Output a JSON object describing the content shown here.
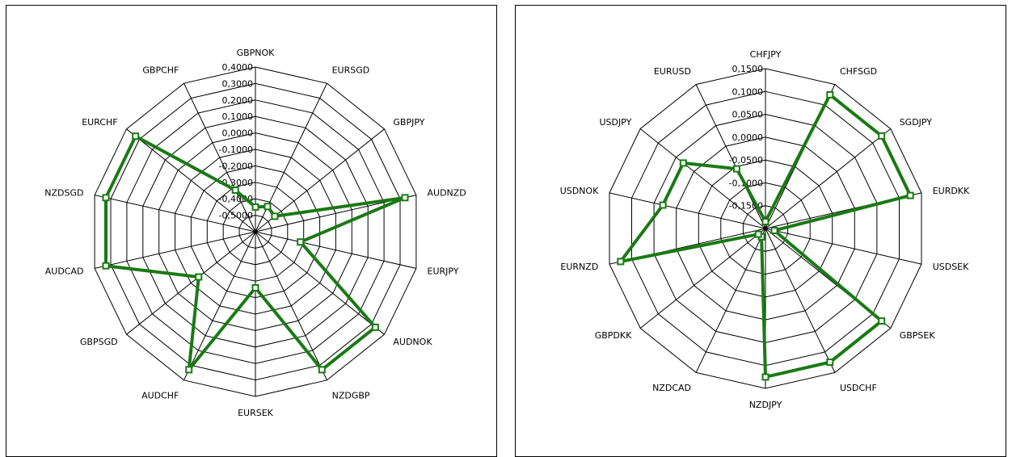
{
  "colors": {
    "series": "#1a7a14",
    "grid": "#000000",
    "background": "#ffffff"
  },
  "chart_data": [
    {
      "type": "radar",
      "title": "",
      "categories": [
        "GBPNOK",
        "EURSGD",
        "GBPJPY",
        "AUDNZD",
        "EURJPY",
        "AUDNOK",
        "NZDGBP",
        "EURSEK",
        "AUDCHF",
        "GBPSGD",
        "AUDCAD",
        "NZDSGD",
        "EURCHF",
        "GBPCHF"
      ],
      "ticks": [
        "0,4000",
        "0,3000",
        "0,2000",
        "0,1000",
        "0,0000",
        "-0,1000",
        "-0,2000",
        "-0,3000",
        "-0,4000",
        "-0,5000"
      ],
      "rmin": -0.6,
      "rmax": 0.4,
      "grid": true,
      "series": [
        {
          "values": [
            -0.45,
            -0.43,
            -0.45,
            0.33,
            -0.32,
            0.33,
            0.33,
            -0.26,
            0.33,
            -0.16,
            0.33,
            0.33,
            0.33,
            -0.32
          ]
        }
      ]
    },
    {
      "type": "radar",
      "title": "",
      "categories": [
        "CHFJPY",
        "CHFSGD",
        "SGDJPY",
        "EURDKK",
        "USDSEK",
        "GBPSEK",
        "USDCHF",
        "NZDJPY",
        "NZDCAD",
        "GBPDKK",
        "EURNZD",
        "USDNOK",
        "USDJPY",
        "EURUSD"
      ],
      "ticks": [
        "0,1500",
        "0,1000",
        "0,0500",
        "0,0000",
        "-0,0500",
        "-0,1000",
        "-0,1500"
      ],
      "rmin": -0.2,
      "rmax": 0.15,
      "grid": true,
      "series": [
        {
          "values": [
            -0.185,
            0.125,
            0.125,
            0.125,
            -0.18,
            0.125,
            0.125,
            0.125,
            -0.18,
            -0.18,
            0.125,
            0.03,
            0.03,
            -0.055
          ]
        }
      ]
    }
  ]
}
